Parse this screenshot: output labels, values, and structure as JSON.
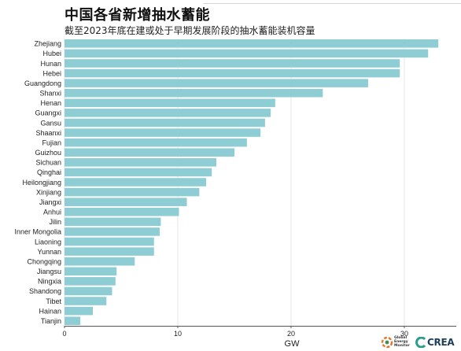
{
  "chart_data": {
    "type": "bar",
    "orientation": "horizontal",
    "title": "中国各省新增抽水蓄能",
    "subtitle": "截至2023年底在建或处于早期发展阶段的抽水蓄能装机容量",
    "xlabel": "GW",
    "xlim": [
      0,
      35
    ],
    "xticks": [
      0,
      10,
      20,
      30
    ],
    "grid": true,
    "bar_color": "#8ecdd3",
    "categories": [
      "Zhejiang",
      "Hubei",
      "Hunan",
      "Hebei",
      "Guangdong",
      "Shanxi",
      "Henan",
      "Guangxi",
      "Gansu",
      "Shaanxi",
      "Fujian",
      "Guizhou",
      "Sichuan",
      "Qinghai",
      "Heilongjiang",
      "Xinjiang",
      "Jiangxi",
      "Anhui",
      "Jilin",
      "Inner Mongolia",
      "Liaoning",
      "Yunnan",
      "Chongqing",
      "Jiangsu",
      "Ningxia",
      "Shandong",
      "Tibet",
      "Hainan",
      "Tianjin"
    ],
    "values": [
      33.0,
      32.1,
      29.6,
      29.6,
      26.8,
      22.8,
      18.6,
      18.2,
      17.7,
      17.3,
      16.1,
      15.0,
      13.4,
      13.0,
      12.5,
      11.9,
      10.8,
      10.1,
      8.5,
      8.4,
      7.9,
      7.9,
      6.2,
      4.6,
      4.5,
      4.2,
      3.7,
      2.5,
      1.4
    ]
  },
  "logos": {
    "gem_text": [
      "Global",
      "Energy",
      "Monitor"
    ],
    "crea_text": "CREA"
  }
}
